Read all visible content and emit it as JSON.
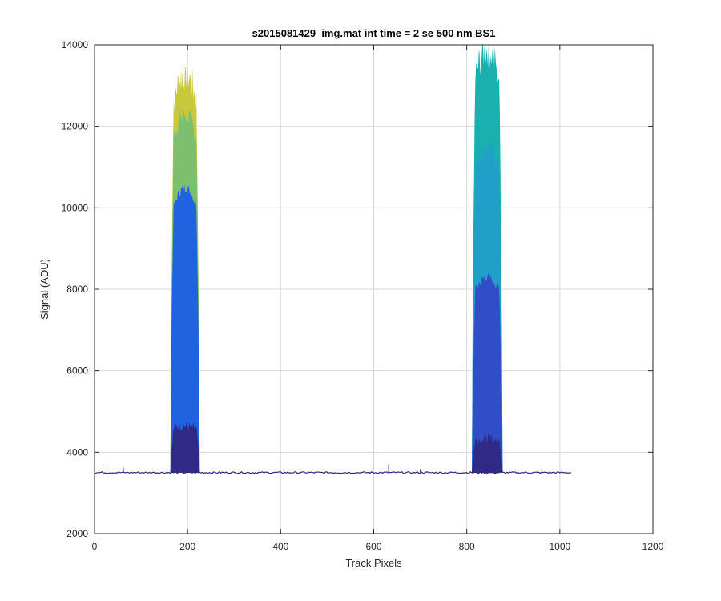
{
  "chart_data": {
    "type": "area",
    "title": "s2015081429_img.mat int time = 2 se  500 nm BS1",
    "xlabel": "Track Pixels",
    "ylabel": "Signal (ADU)",
    "xlim": [
      0,
      1200
    ],
    "ylim": [
      2000,
      14000
    ],
    "xticks": [
      0,
      200,
      400,
      600,
      800,
      1000,
      1200
    ],
    "yticks": [
      2000,
      4000,
      6000,
      8000,
      10000,
      12000,
      14000
    ],
    "grid": true,
    "baseline": 3500,
    "x_extent": [
      1,
      1024
    ],
    "peaks": [
      {
        "name": "peak-1",
        "x_start": 163,
        "x_end": 226,
        "layers": [
          {
            "level": "max",
            "top": 13300,
            "color": "#c8c83c"
          },
          {
            "level": "upper",
            "top": 12300,
            "color": "#7cbf6e"
          },
          {
            "level": "mid",
            "top": 10500,
            "color": "#1f63e0"
          },
          {
            "level": "low",
            "top": 4650,
            "color": "#2e2a85"
          }
        ]
      },
      {
        "name": "peak-2",
        "x_start": 811,
        "x_end": 877,
        "layers": [
          {
            "level": "max",
            "top": 13900,
            "color": "#1ab0b0"
          },
          {
            "level": "upper",
            "top": 11500,
            "color": "#20a0c8"
          },
          {
            "level": "mid",
            "top": 8300,
            "color": "#2f4ec8"
          },
          {
            "level": "low",
            "top": 4350,
            "color": "#2e2a85"
          }
        ]
      }
    ],
    "spikes": [
      {
        "x": 18,
        "y": 3640
      },
      {
        "x": 62,
        "y": 3620
      },
      {
        "x": 390,
        "y": 3570
      },
      {
        "x": 632,
        "y": 3700
      },
      {
        "x": 700,
        "y": 3580
      }
    ],
    "colors": {
      "baseline": "#2e2a85",
      "grid": "#d9d9d9",
      "axis": "#262626"
    }
  }
}
